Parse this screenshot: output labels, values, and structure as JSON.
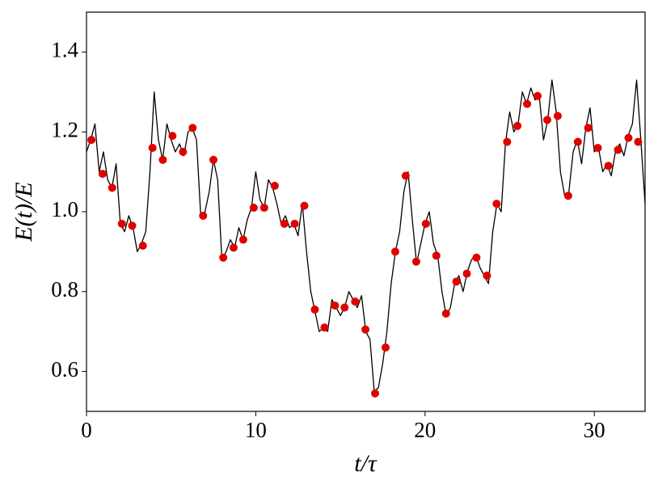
{
  "chart_data": {
    "type": "line",
    "xlabel": "t/τ",
    "ylabel": "E(t)/E",
    "xlim": [
      0,
      33
    ],
    "ylim": [
      0.5,
      1.5
    ],
    "xticks": [
      0,
      10,
      20,
      30
    ],
    "yticks": [
      0.6,
      0.8,
      {
        "value": 1,
        "label": "1.0"
      },
      1.2,
      1.4
    ],
    "series": [
      {
        "type": "line",
        "color": "#000000",
        "x": [
          0,
          0.25,
          0.5,
          0.75,
          1,
          1.25,
          1.5,
          1.75,
          2,
          2.25,
          2.5,
          2.75,
          3,
          3.25,
          3.5,
          3.75,
          4,
          4.25,
          4.5,
          4.75,
          5,
          5.25,
          5.5,
          5.75,
          6,
          6.25,
          6.5,
          6.75,
          7,
          7.25,
          7.5,
          7.75,
          8,
          8.25,
          8.5,
          8.75,
          9,
          9.25,
          9.5,
          9.75,
          10,
          10.25,
          10.5,
          10.75,
          11,
          11.25,
          11.5,
          11.75,
          12,
          12.25,
          12.5,
          12.75,
          13,
          13.25,
          13.5,
          13.75,
          14,
          14.25,
          14.5,
          14.75,
          15,
          15.25,
          15.5,
          15.75,
          16,
          16.25,
          16.5,
          16.75,
          17,
          17.25,
          17.5,
          17.75,
          18,
          18.25,
          18.5,
          18.75,
          19,
          19.25,
          19.5,
          19.75,
          20,
          20.25,
          20.5,
          20.75,
          21,
          21.25,
          21.5,
          21.75,
          22,
          22.25,
          22.5,
          22.75,
          23,
          23.25,
          23.5,
          23.75,
          24,
          24.25,
          24.5,
          24.75,
          25,
          25.25,
          25.5,
          25.75,
          26,
          26.25,
          26.5,
          26.75,
          27,
          27.25,
          27.5,
          27.75,
          28,
          28.25,
          28.5,
          28.75,
          29,
          29.25,
          29.5,
          29.75,
          30,
          30.25,
          30.5,
          30.75,
          31,
          31.25,
          31.5,
          31.75,
          32,
          32.25,
          32.5,
          32.75,
          33
        ],
        "values": [
          1.15,
          1.18,
          1.22,
          1.1,
          1.15,
          1.08,
          1.06,
          1.12,
          0.97,
          0.95,
          0.99,
          0.96,
          0.9,
          0.92,
          0.95,
          1.1,
          1.3,
          1.18,
          1.13,
          1.22,
          1.18,
          1.15,
          1.17,
          1.14,
          1.2,
          1.21,
          1.18,
          0.99,
          1.0,
          1.05,
          1.13,
          1.08,
          0.88,
          0.9,
          0.93,
          0.91,
          0.96,
          0.93,
          0.98,
          1.01,
          1.1,
          1.03,
          1.01,
          1.08,
          1.06,
          1.02,
          0.97,
          0.99,
          0.96,
          0.97,
          0.94,
          1.02,
          0.9,
          0.8,
          0.75,
          0.7,
          0.71,
          0.7,
          0.78,
          0.76,
          0.74,
          0.76,
          0.8,
          0.78,
          0.76,
          0.79,
          0.7,
          0.68,
          0.55,
          0.56,
          0.62,
          0.7,
          0.82,
          0.9,
          0.95,
          1.05,
          1.1,
          0.98,
          0.87,
          0.92,
          0.97,
          1.0,
          0.92,
          0.89,
          0.8,
          0.74,
          0.76,
          0.82,
          0.84,
          0.8,
          0.85,
          0.88,
          0.89,
          0.86,
          0.84,
          0.82,
          0.95,
          1.02,
          1.0,
          1.17,
          1.25,
          1.2,
          1.22,
          1.3,
          1.27,
          1.31,
          1.28,
          1.29,
          1.18,
          1.23,
          1.33,
          1.25,
          1.1,
          1.04,
          1.05,
          1.15,
          1.18,
          1.12,
          1.21,
          1.26,
          1.15,
          1.16,
          1.1,
          1.12,
          1.09,
          1.15,
          1.17,
          1.14,
          1.19,
          1.22,
          1.33,
          1.18,
          1.02
        ]
      },
      {
        "type": "scatter",
        "color": "#e00000",
        "x": [
          0.29,
          0.95,
          1.52,
          2.09,
          2.7,
          3.33,
          3.9,
          4.51,
          5.08,
          5.7,
          6.27,
          6.89,
          7.5,
          8.08,
          8.69,
          9.26,
          9.88,
          10.5,
          11.12,
          11.69,
          12.3,
          12.87,
          13.49,
          14.06,
          14.68,
          15.25,
          15.87,
          16.48,
          17.05,
          17.67,
          18.24,
          18.86,
          19.48,
          20.05,
          20.67,
          21.24,
          21.85,
          22.47,
          23.04,
          23.66,
          24.23,
          24.85,
          25.46,
          26.03,
          26.65,
          27.22,
          27.84,
          28.46,
          29.03,
          29.64,
          30.21,
          30.83,
          31.4,
          32.02,
          32.59
        ],
        "values": [
          1.18,
          1.095,
          1.06,
          0.97,
          0.965,
          0.915,
          1.16,
          1.13,
          1.19,
          1.15,
          1.21,
          0.99,
          1.13,
          0.885,
          0.91,
          0.93,
          1.01,
          1.01,
          1.065,
          0.97,
          0.97,
          1.015,
          0.755,
          0.71,
          0.765,
          0.76,
          0.775,
          0.705,
          0.545,
          0.66,
          0.9,
          1.09,
          0.875,
          0.97,
          0.89,
          0.745,
          0.825,
          0.845,
          0.885,
          0.84,
          1.02,
          1.175,
          1.215,
          1.27,
          1.29,
          1.23,
          1.24,
          1.04,
          1.175,
          1.21,
          1.16,
          1.115,
          1.155,
          1.185,
          1.175
        ]
      }
    ]
  }
}
